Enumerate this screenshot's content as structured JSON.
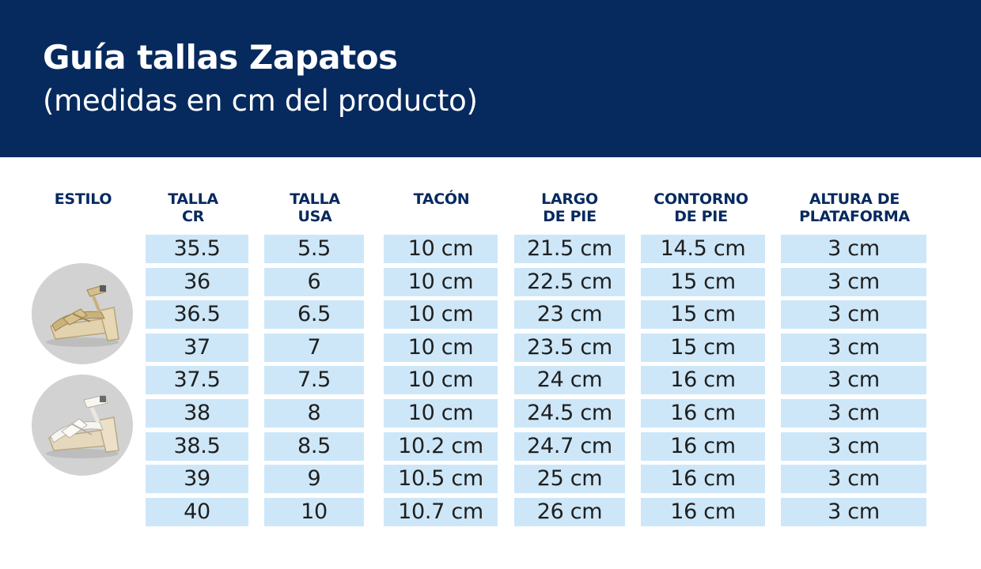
{
  "header": {
    "title": "Guía tallas Zapatos",
    "subtitle": "(medidas en cm del producto)"
  },
  "columns": {
    "style": "ESTILO",
    "cr": [
      "TALLA",
      "CR"
    ],
    "usa": [
      "TALLA",
      "USA"
    ],
    "heel": "TACÓN",
    "foot_length": [
      "LARGO",
      "DE PIE"
    ],
    "foot_contour": [
      "CONTORNO",
      "DE PIE"
    ],
    "platform": [
      "ALTURA DE",
      "PLATAFORMA"
    ]
  },
  "style_images": [
    {
      "icon": "gold-platform-sandal-icon",
      "description_color": "#d9c9a3"
    },
    {
      "icon": "white-platform-sandal-icon",
      "description_color": "#f2f0eb"
    }
  ],
  "rows": [
    {
      "cr": "35.5",
      "usa": "5.5",
      "heel": "10 cm",
      "foot_length": "21.5 cm",
      "foot_contour": "14.5 cm",
      "platform": "3 cm"
    },
    {
      "cr": "36",
      "usa": "6",
      "heel": "10 cm",
      "foot_length": "22.5 cm",
      "foot_contour": "15 cm",
      "platform": "3 cm"
    },
    {
      "cr": "36.5",
      "usa": "6.5",
      "heel": "10 cm",
      "foot_length": "23 cm",
      "foot_contour": "15 cm",
      "platform": "3 cm"
    },
    {
      "cr": "37",
      "usa": "7",
      "heel": "10 cm",
      "foot_length": "23.5 cm",
      "foot_contour": "15 cm",
      "platform": "3 cm"
    },
    {
      "cr": "37.5",
      "usa": "7.5",
      "heel": "10 cm",
      "foot_length": "24 cm",
      "foot_contour": "16 cm",
      "platform": "3 cm"
    },
    {
      "cr": "38",
      "usa": "8",
      "heel": "10 cm",
      "foot_length": "24.5 cm",
      "foot_contour": "16 cm",
      "platform": "3 cm"
    },
    {
      "cr": "38.5",
      "usa": "8.5",
      "heel": "10.2 cm",
      "foot_length": "24.7 cm",
      "foot_contour": "16 cm",
      "platform": "3 cm"
    },
    {
      "cr": "39",
      "usa": "9",
      "heel": "10.5 cm",
      "foot_length": "25 cm",
      "foot_contour": "16 cm",
      "platform": "3 cm"
    },
    {
      "cr": "40",
      "usa": "10",
      "heel": "10.7 cm",
      "foot_length": "26 cm",
      "foot_contour": "16 cm",
      "platform": "3 cm"
    }
  ],
  "colors": {
    "header_bg": "#062a5e",
    "header_text": "#ffffff",
    "column_header_text": "#062a5e",
    "cell_bg": "#cde7f8",
    "cell_text": "#1f1f1f",
    "image_circle_bg": "#d2d2d2"
  }
}
